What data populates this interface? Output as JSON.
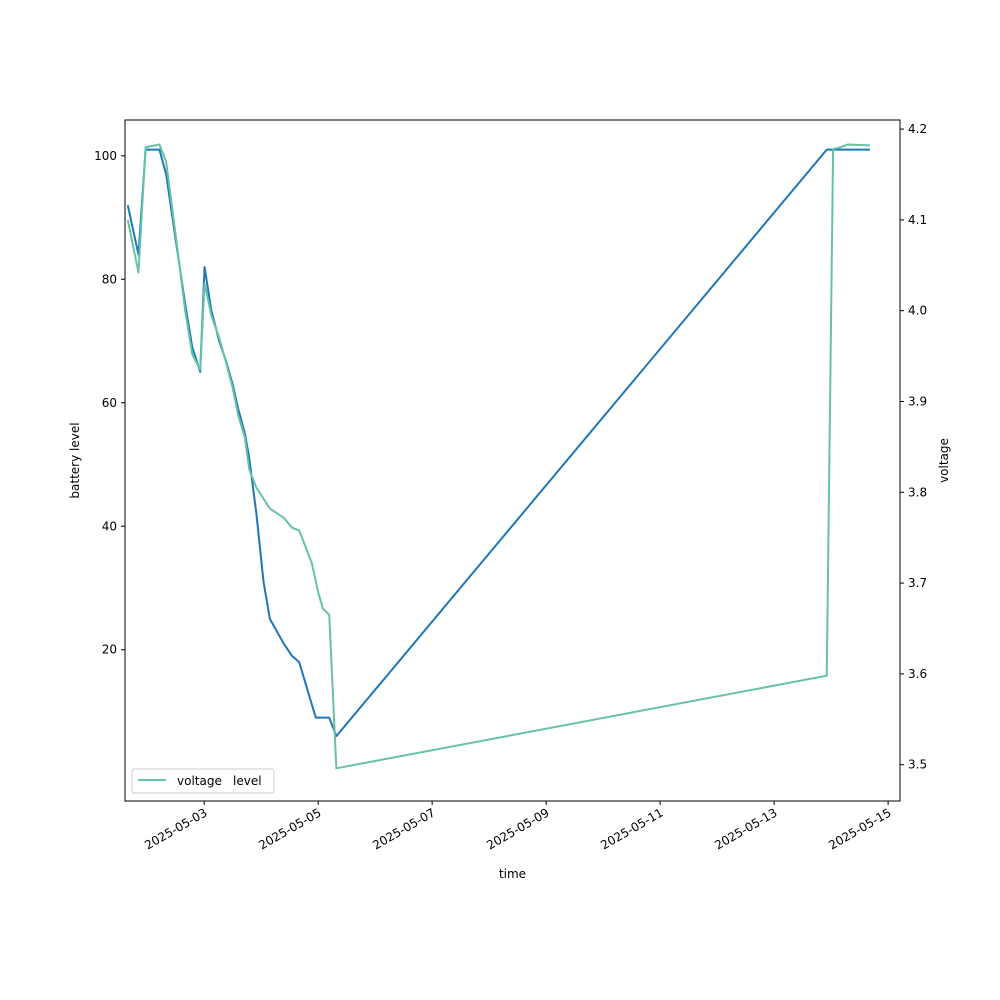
{
  "chart_data": {
    "type": "line",
    "xlabel": "time",
    "ylabel_left": "battery level",
    "ylabel_right": "voltage",
    "x_ticks": [
      "2025-05-03",
      "2025-05-05",
      "2025-05-07",
      "2025-05-09",
      "2025-05-11",
      "2025-05-13",
      "2025-05-15"
    ],
    "xlim": [
      "2025-05-01T14:40:00",
      "2025-05-15T05:00:00"
    ],
    "ylim_left": [
      -4.5,
      105.8
    ],
    "ylim_right": [
      3.46,
      4.21
    ],
    "y_ticks_left": [
      20,
      40,
      60,
      80,
      100
    ],
    "y_ticks_right": [
      3.5,
      3.6,
      3.7,
      3.8,
      3.9,
      4.0,
      4.1,
      4.2
    ],
    "legend": {
      "placement": "lower-left",
      "entries": [
        "voltage",
        "level"
      ]
    },
    "grid": false,
    "series": [
      {
        "name": "level",
        "axis": "left",
        "color": "#1f77b4",
        "points": [
          [
            "2025-05-01T15:50:00",
            92
          ],
          [
            "2025-05-01T20:20:00",
            84
          ],
          [
            "2025-05-01T23:20:00",
            101
          ],
          [
            "2025-05-02T05:10:00",
            101
          ],
          [
            "2025-05-02T08:00:00",
            97
          ],
          [
            "2025-05-02T12:10:00",
            86
          ],
          [
            "2025-05-02T16:00:00",
            76
          ],
          [
            "2025-05-02T19:00:00",
            69
          ],
          [
            "2025-05-02T22:20:00",
            65
          ],
          [
            "2025-05-03T00:10:00",
            82
          ],
          [
            "2025-05-03T03:00:00",
            75
          ],
          [
            "2025-05-03T06:20:00",
            70
          ],
          [
            "2025-05-03T09:00:00",
            67
          ],
          [
            "2025-05-03T12:00:00",
            63
          ],
          [
            "2025-05-03T14:20:00",
            59
          ],
          [
            "2025-05-03T17:10:00",
            55
          ],
          [
            "2025-05-03T19:00:00",
            51
          ],
          [
            "2025-05-03T22:00:00",
            42
          ],
          [
            "2025-05-04T01:00:00",
            31
          ],
          [
            "2025-05-04T03:40:00",
            25
          ],
          [
            "2025-05-04T09:30:00",
            21
          ],
          [
            "2025-05-04T13:00:00",
            19
          ],
          [
            "2025-05-04T16:00:00",
            18
          ],
          [
            "2025-05-04T23:00:00",
            9
          ],
          [
            "2025-05-05T04:40:00",
            9
          ],
          [
            "2025-05-05T07:40:00",
            6
          ],
          [
            "2025-05-13T22:10:00",
            101
          ],
          [
            "2025-05-14T16:20:00",
            101
          ]
        ]
      },
      {
        "name": "voltage",
        "axis": "right",
        "color": "#66c2a5",
        "points": [
          [
            "2025-05-01T15:50:00",
            4.1
          ],
          [
            "2025-05-01T20:20:00",
            4.042
          ],
          [
            "2025-05-01T23:20:00",
            4.18
          ],
          [
            "2025-05-02T05:10:00",
            4.183
          ],
          [
            "2025-05-02T08:00:00",
            4.164
          ],
          [
            "2025-05-02T12:10:00",
            4.08
          ],
          [
            "2025-05-02T16:00:00",
            4.0
          ],
          [
            "2025-05-02T19:00:00",
            3.952
          ],
          [
            "2025-05-02T22:20:00",
            3.935
          ],
          [
            "2025-05-03T00:10:00",
            4.03
          ],
          [
            "2025-05-03T03:00:00",
            3.995
          ],
          [
            "2025-05-03T06:20:00",
            3.97
          ],
          [
            "2025-05-03T09:00:00",
            3.945
          ],
          [
            "2025-05-03T12:00:00",
            3.915
          ],
          [
            "2025-05-03T14:20:00",
            3.885
          ],
          [
            "2025-05-03T17:10:00",
            3.86
          ],
          [
            "2025-05-03T19:00:00",
            3.825
          ],
          [
            "2025-05-03T22:00:00",
            3.805
          ],
          [
            "2025-05-04T01:00:00",
            3.793
          ],
          [
            "2025-05-04T03:40:00",
            3.782
          ],
          [
            "2025-05-04T09:30:00",
            3.772
          ],
          [
            "2025-05-04T13:00:00",
            3.761
          ],
          [
            "2025-05-04T16:00:00",
            3.758
          ],
          [
            "2025-05-04T21:20:00",
            3.722
          ],
          [
            "2025-05-05T00:00:00",
            3.69
          ],
          [
            "2025-05-05T02:00:00",
            3.672
          ],
          [
            "2025-05-05T04:40:00",
            3.665
          ],
          [
            "2025-05-05T07:40:00",
            3.496
          ],
          [
            "2025-05-13T22:10:00",
            3.598
          ],
          [
            "2025-05-14T00:50:00",
            4.178
          ],
          [
            "2025-05-14T04:00:00",
            4.18
          ],
          [
            "2025-05-14T07:00:00",
            4.183
          ],
          [
            "2025-05-14T16:20:00",
            4.182
          ]
        ]
      }
    ]
  }
}
